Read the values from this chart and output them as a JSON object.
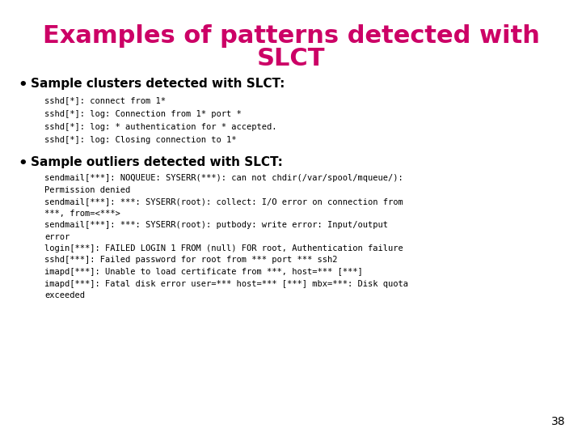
{
  "title_line1": "Examples of patterns detected with",
  "title_line2": "SLCT",
  "title_color": "#CC0066",
  "bg_color": "#FFFFFF",
  "bullet_color": "#000000",
  "bullet1_header": "Sample clusters detected with SLCT:",
  "bullet1_code": [
    "sshd[*]: connect from 1*",
    "sshd[*]: log: Connection from 1* port *",
    "sshd[*]: log: * authentication for * accepted.",
    "sshd[*]: log: Closing connection to 1*"
  ],
  "bullet2_header": "Sample outliers detected with SLCT:",
  "bullet2_code": [
    "sendmail[***]: NOQUEUE: SYSERR(***): can not chdir(/var/spool/mqueue/):",
    "Permission denied",
    "sendmail[***]: ***: SYSERR(root): collect: I/O error on connection from",
    "***, from=<***>",
    "sendmail[***]: ***: SYSERR(root): putbody: write error: Input/output",
    "error",
    "login[***]: FAILED LOGIN 1 FROM (null) FOR root, Authentication failure",
    "sshd[***]: Failed password for root from *** port *** ssh2",
    "imapd[***]: Unable to load certificate from ***, host=*** [***]",
    "imapd[***]: Fatal disk error user=*** host=*** [***] mbx=***: Disk quota",
    "exceeded"
  ],
  "page_number": "38",
  "title_fontsize": 22,
  "header_fontsize": 11,
  "code_fontsize": 7.5,
  "page_num_fontsize": 10
}
